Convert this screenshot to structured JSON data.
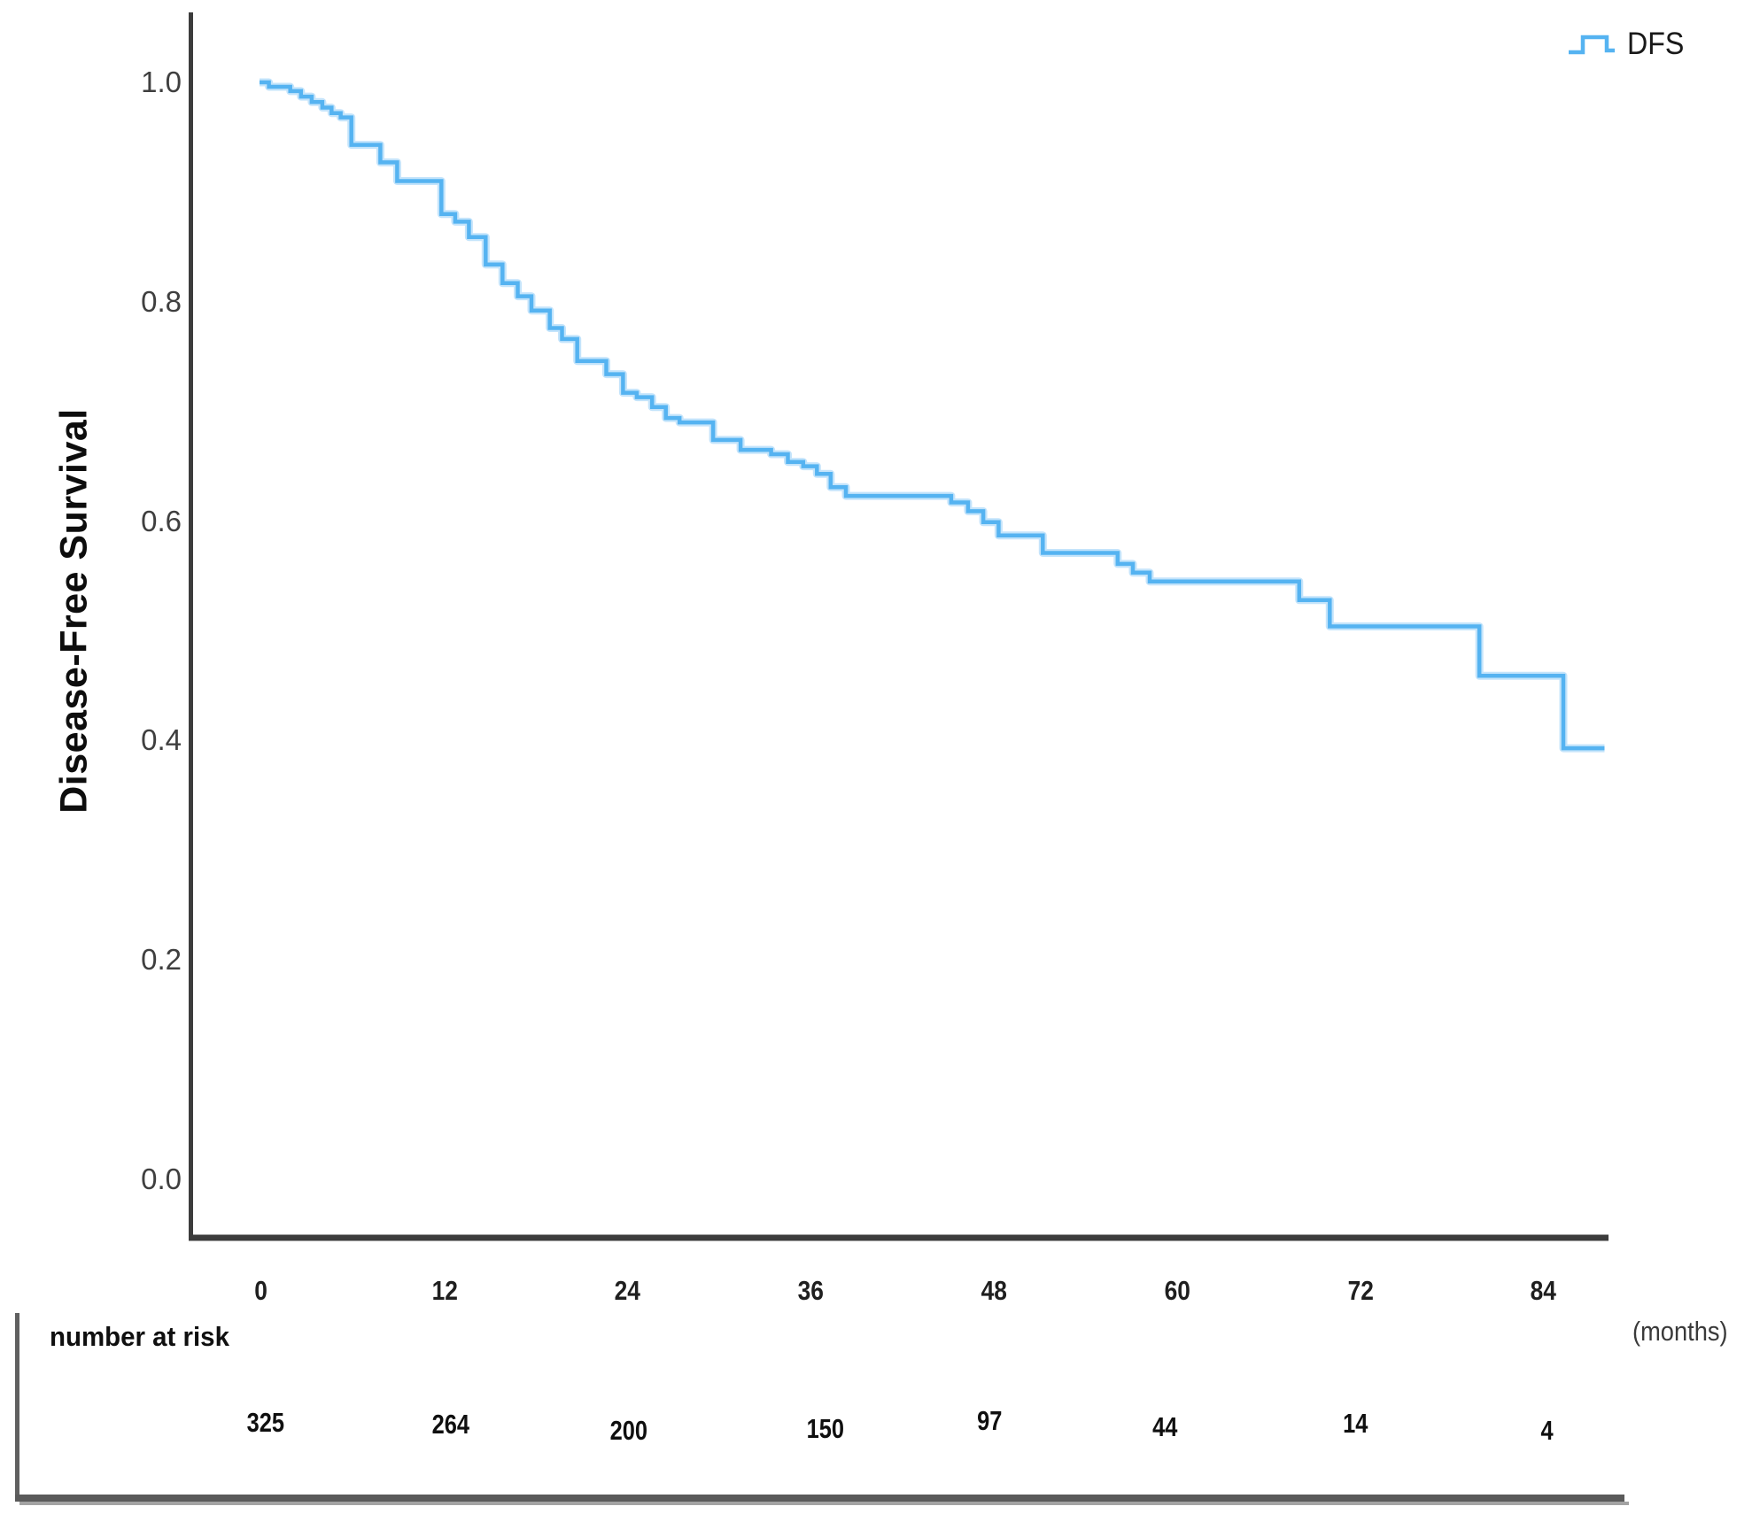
{
  "chart_data": {
    "type": "line",
    "subtype": "kaplan-meier-step-curve",
    "title": "",
    "ylabel": "Disease-Free Survival",
    "xlabel_unit": "(months)",
    "legend": [
      {
        "label": "DFS",
        "position": "top-right"
      }
    ],
    "x_ticks": [
      "0",
      "12",
      "24",
      "36",
      "48",
      "60",
      "72",
      "84"
    ],
    "y_ticks": [
      "1.0",
      "0.8",
      "0.6",
      "0.4",
      "0.2",
      "0.0"
    ],
    "xlim": [
      0,
      88
    ],
    "ylim": [
      0,
      1.06
    ],
    "grid": false,
    "series": [
      {
        "name": "DFS",
        "end_time_months": 88,
        "points_time_survival": [
          [
            0.0,
            1.0
          ],
          [
            0.5,
            0.996
          ],
          [
            1.9,
            0.992
          ],
          [
            2.6,
            0.987
          ],
          [
            3.3,
            0.982
          ],
          [
            4.0,
            0.977
          ],
          [
            4.6,
            0.972
          ],
          [
            5.2,
            0.968
          ],
          [
            5.9,
            0.943
          ],
          [
            7.8,
            0.927
          ],
          [
            8.9,
            0.91
          ],
          [
            11.8,
            0.88
          ],
          [
            12.7,
            0.873
          ],
          [
            13.6,
            0.859
          ],
          [
            14.7,
            0.834
          ],
          [
            15.8,
            0.817
          ],
          [
            16.8,
            0.805
          ],
          [
            17.7,
            0.792
          ],
          [
            18.9,
            0.776
          ],
          [
            19.7,
            0.766
          ],
          [
            20.7,
            0.746
          ],
          [
            22.6,
            0.734
          ],
          [
            23.7,
            0.717
          ],
          [
            24.6,
            0.713
          ],
          [
            25.6,
            0.704
          ],
          [
            26.5,
            0.694
          ],
          [
            27.4,
            0.69
          ],
          [
            29.6,
            0.674
          ],
          [
            31.4,
            0.665
          ],
          [
            33.4,
            0.661
          ],
          [
            34.5,
            0.654
          ],
          [
            35.5,
            0.65
          ],
          [
            36.4,
            0.643
          ],
          [
            37.3,
            0.631
          ],
          [
            38.3,
            0.623
          ],
          [
            45.2,
            0.617
          ],
          [
            46.3,
            0.609
          ],
          [
            47.3,
            0.599
          ],
          [
            48.3,
            0.587
          ],
          [
            51.2,
            0.571
          ],
          [
            56.1,
            0.561
          ],
          [
            57.1,
            0.553
          ],
          [
            58.2,
            0.545
          ],
          [
            68.0,
            0.528
          ],
          [
            70.0,
            0.504
          ],
          [
            79.8,
            0.459
          ],
          [
            85.3,
            0.393
          ]
        ]
      }
    ],
    "number_at_risk": {
      "label": "number at risk",
      "times": [
        0,
        12,
        24,
        36,
        48,
        60,
        72,
        84
      ],
      "values": [
        "325",
        "264",
        "200",
        "150",
        "97",
        "44",
        "14",
        "4"
      ]
    }
  },
  "colors": {
    "curve": "#55b3f1",
    "curve_halo": "#c4e4fb",
    "axis": "#3c3c3c",
    "tick_text": "#3f3f3f",
    "table_border": "#5a5a5a",
    "table_border_shadow": "#a3a3a3"
  }
}
